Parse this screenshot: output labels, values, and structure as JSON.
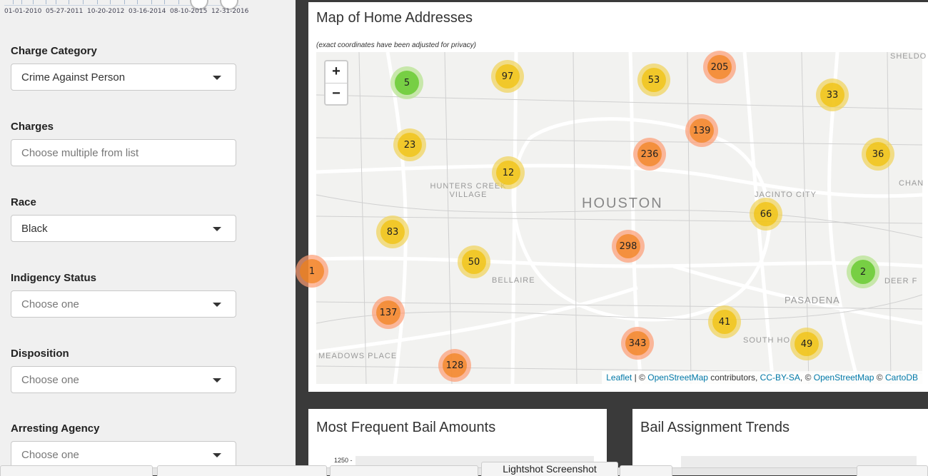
{
  "date_slider": {
    "ticks": [
      "01-01-2010",
      "05-27-2011",
      "10-20-2012",
      "03-16-2014",
      "08-10-2015",
      "12-31-2016"
    ]
  },
  "filters": [
    {
      "label": "Charge Category",
      "value": "Crime Against Person",
      "placeholder": "",
      "dropdown": true
    },
    {
      "label": "Charges",
      "value": "",
      "placeholder": "Choose multiple from list",
      "dropdown": false
    },
    {
      "label": "Race",
      "value": "Black",
      "placeholder": "",
      "dropdown": true
    },
    {
      "label": "Indigency Status",
      "value": "",
      "placeholder": "Choose one",
      "dropdown": true
    },
    {
      "label": "Disposition",
      "value": "",
      "placeholder": "Choose one",
      "dropdown": true
    },
    {
      "label": "Arresting Agency",
      "value": "",
      "placeholder": "Choose one",
      "dropdown": true
    }
  ],
  "map": {
    "title": "Map of Home Addresses",
    "subtitle": "(exact coordinates have been adjusted for privacy)",
    "zoom_in": "+",
    "zoom_out": "−",
    "places": [
      "HOUSTON",
      "HUNTERS CREEK VILLAGE",
      "BELLAIRE",
      "JACINTO CITY",
      "PASADENA",
      "SOUTH HO",
      "MEADOWS PLACE",
      "SHELDO",
      "CHAN",
      "DEER F"
    ],
    "clusters": [
      "5",
      "97",
      "53",
      "205",
      "33",
      "139",
      "23",
      "236",
      "36",
      "12",
      "66",
      "83",
      "298",
      "1",
      "50",
      "2",
      "137",
      "41",
      "343",
      "49",
      "128"
    ],
    "attribution": {
      "leaflet": "Leaflet",
      "sep1": " | © ",
      "osm1": "OpenStreetMap",
      "mid": " contributors, ",
      "license": "CC-BY-SA",
      "sep2": ", © ",
      "osm2": "OpenStreetMap",
      "sep3": " © ",
      "carto": "CartoDB"
    }
  },
  "panels": {
    "bail_amounts": {
      "title": "Most Frequent Bail Amounts",
      "ytick_top": "1250 -"
    },
    "bail_trends": {
      "title": "Bail Assignment Trends"
    }
  },
  "taskbar": {
    "screenshot_label": "Lightshot Screenshot"
  },
  "colors": {
    "small": "#6ecc39",
    "medium": "#f0c20c",
    "large": "#f18017",
    "link": "#0078a8"
  }
}
